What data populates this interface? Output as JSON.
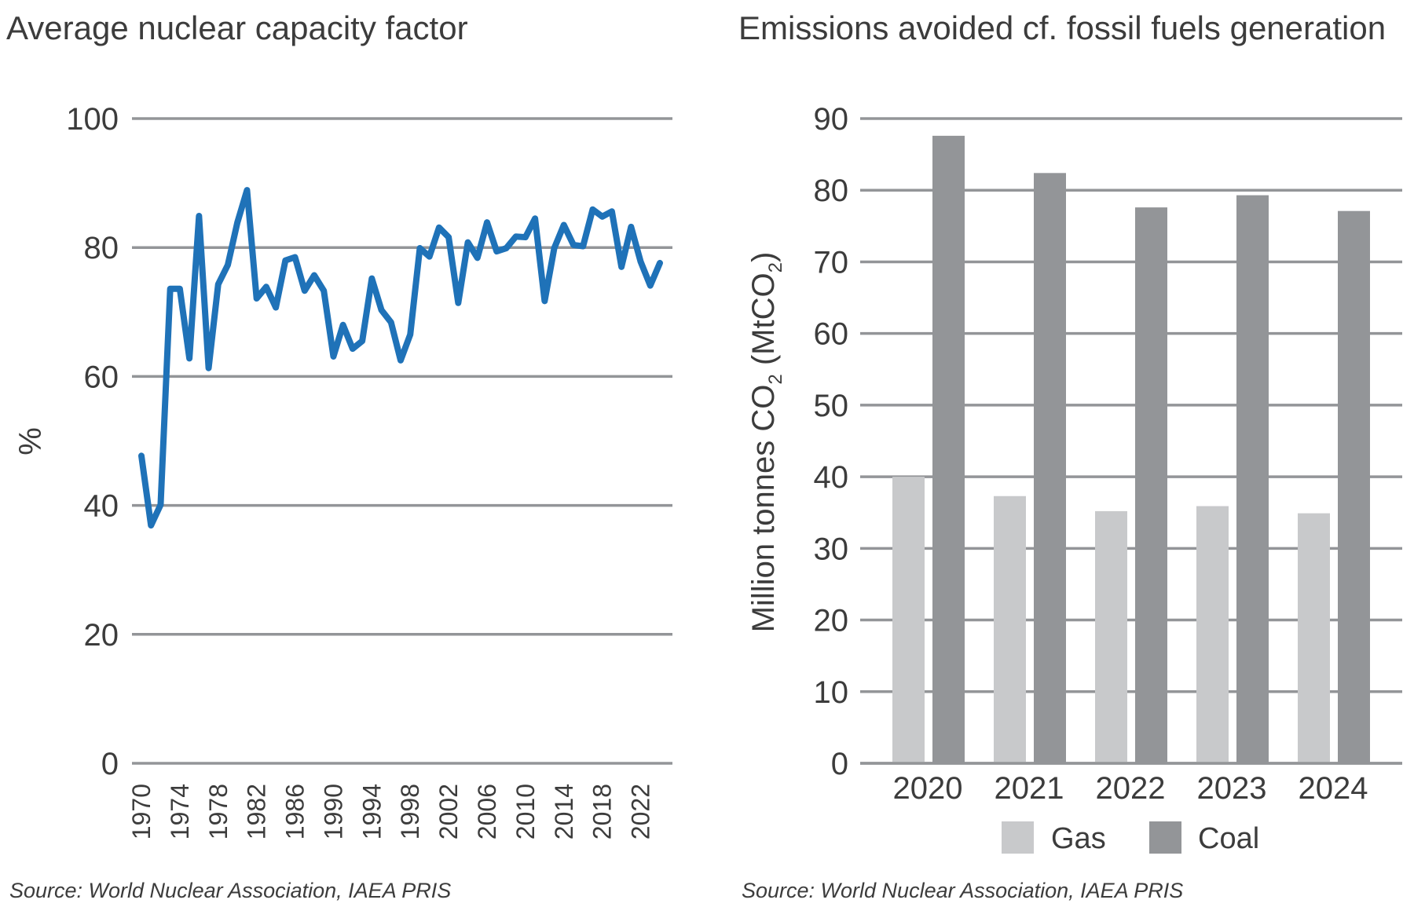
{
  "colors": {
    "line": "#1f72b8",
    "grid": "#939598",
    "gas": "#c8c9cb",
    "coal": "#939598",
    "text": "#3c3c3c"
  },
  "chart_data": [
    {
      "type": "line",
      "title": "Average nuclear capacity factor",
      "xlabel": "",
      "ylabel": "%",
      "ylim": [
        0,
        100
      ],
      "yticks": [
        0,
        20,
        40,
        60,
        80,
        100
      ],
      "xticks": [
        1970,
        1974,
        1978,
        1982,
        1986,
        1990,
        1994,
        1998,
        2002,
        2006,
        2010,
        2014,
        2018,
        2022
      ],
      "grid": true,
      "source": "Source: World Nuclear Association, IAEA PRIS",
      "x": [
        1970,
        1971,
        1972,
        1973,
        1974,
        1975,
        1976,
        1977,
        1978,
        1979,
        1980,
        1981,
        1982,
        1983,
        1984,
        1985,
        1986,
        1987,
        1988,
        1989,
        1990,
        1991,
        1992,
        1993,
        1994,
        1995,
        1996,
        1997,
        1998,
        1999,
        2000,
        2001,
        2002,
        2003,
        2004,
        2005,
        2006,
        2007,
        2008,
        2009,
        2010,
        2011,
        2012,
        2013,
        2014,
        2015,
        2016,
        2017,
        2018,
        2019,
        2020,
        2021,
        2022,
        2023,
        2024
      ],
      "y": [
        47.7,
        36.9,
        40.1,
        73.6,
        73.6,
        62.8,
        84.9,
        61.3,
        74.3,
        77.3,
        83.9,
        88.9,
        72.1,
        73.9,
        70.7,
        78.0,
        78.5,
        73.3,
        75.7,
        73.3,
        63.1,
        68.0,
        64.3,
        65.5,
        75.2,
        70.3,
        68.4,
        62.5,
        66.5,
        79.9,
        78.6,
        83.1,
        81.6,
        71.4,
        80.8,
        78.4,
        83.9,
        79.4,
        79.9,
        81.7,
        81.6,
        84.5,
        71.7,
        79.9,
        83.5,
        80.4,
        80.2,
        85.9,
        84.8,
        85.6,
        77.0,
        83.2,
        77.8,
        74.1,
        77.6
      ]
    },
    {
      "type": "bar",
      "title": "Emissions avoided cf. fossil fuels generation",
      "ylabel_main": "Million tonnes CO",
      "ylabel_sub": "2",
      "ylabel_paren": " (MtCO",
      "ylabel_sub2": "2",
      "ylabel_close": ")",
      "ylim": [
        0,
        90
      ],
      "yticks": [
        0,
        10,
        20,
        30,
        40,
        50,
        60,
        70,
        80,
        90
      ],
      "grid": true,
      "legend": "bottom",
      "categories": [
        "2020",
        "2021",
        "2022",
        "2023",
        "2024"
      ],
      "series": [
        {
          "name": "Gas",
          "values": [
            40.0,
            37.3,
            35.2,
            35.9,
            34.9
          ]
        },
        {
          "name": "Coal",
          "values": [
            87.6,
            82.4,
            77.6,
            79.3,
            77.1
          ]
        }
      ],
      "source": "Source: World Nuclear Association, IAEA PRIS"
    }
  ]
}
